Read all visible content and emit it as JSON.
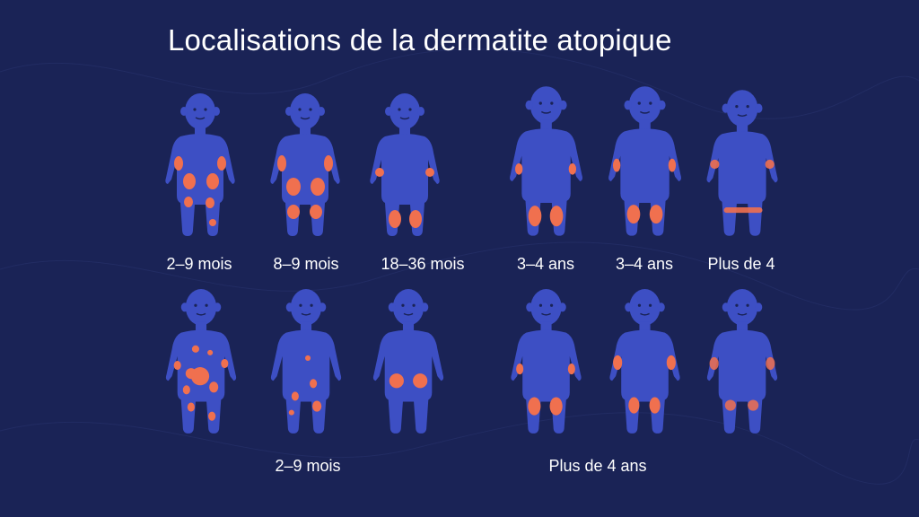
{
  "title": "Localisations de la dermatite atopique",
  "colors": {
    "background": "#1a2356",
    "body": "#3d4fc4",
    "patch": "#f0704f",
    "text": "#ffffff"
  },
  "row1_captions": [
    "2–9 mois",
    "8–9 mois",
    "18–36 mois",
    "3–4 ans",
    "3–4 ans",
    "Plus de 4"
  ],
  "row2_captions": [
    "2–9 mois",
    "Plus de 4 ans"
  ]
}
